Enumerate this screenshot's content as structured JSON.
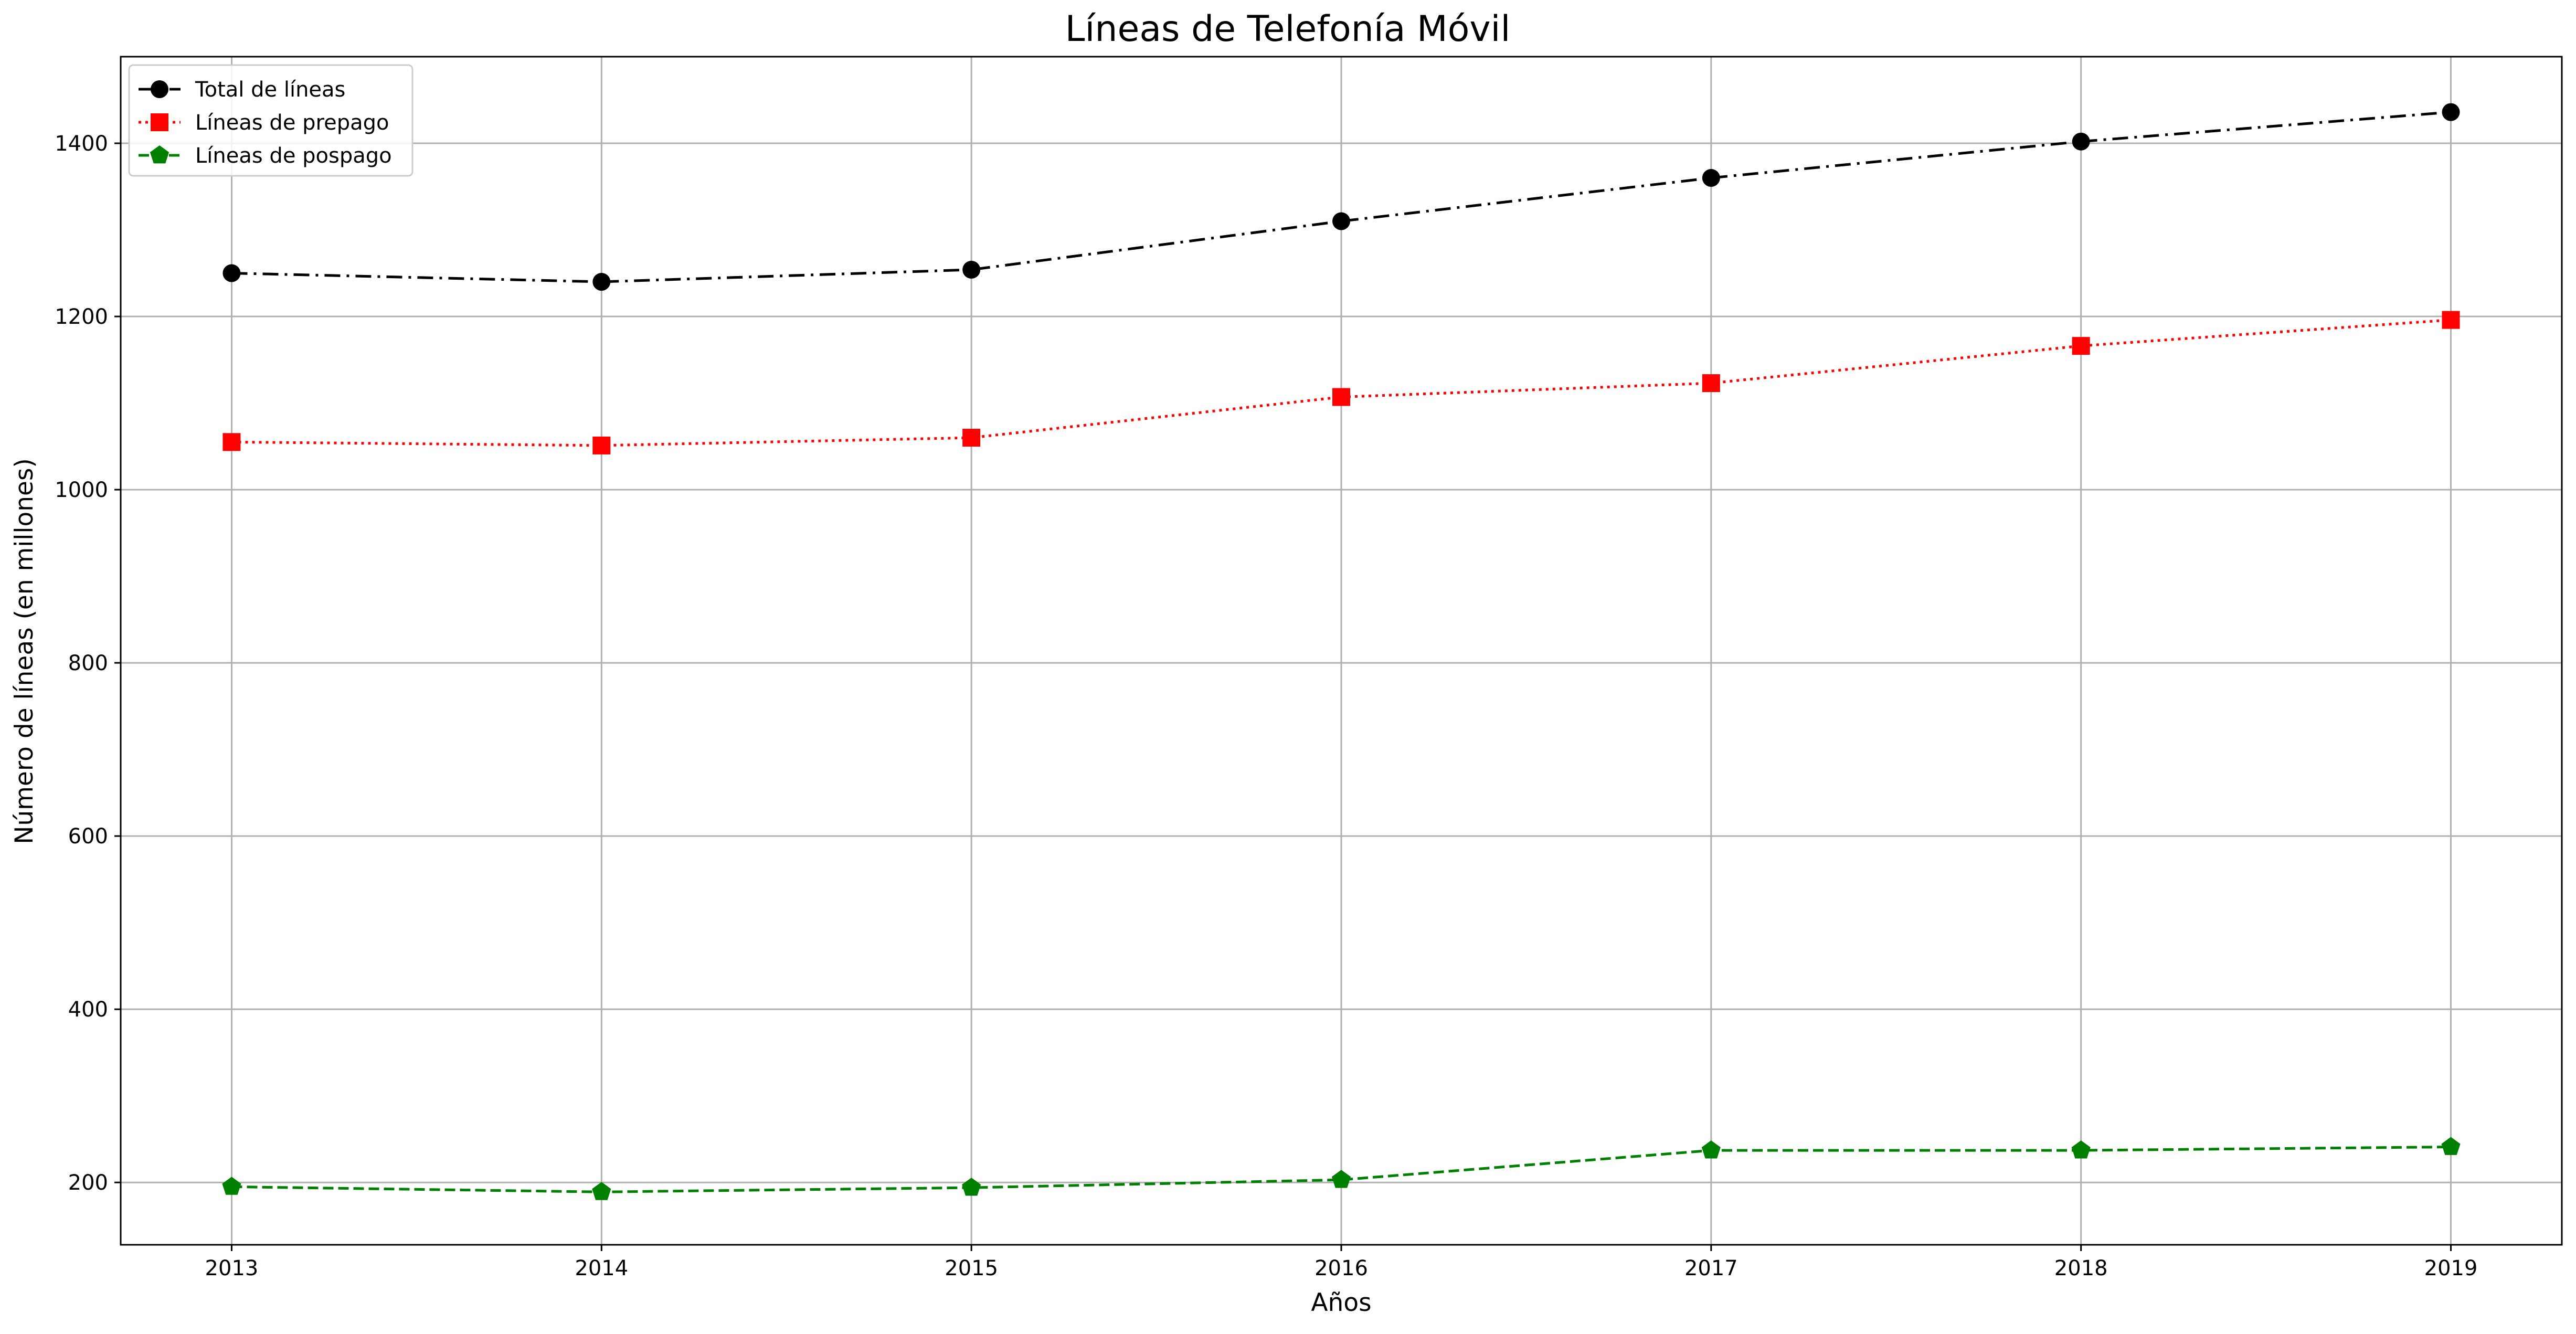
{
  "chart_data": {
    "type": "line",
    "title": "Líneas de Telefonía Móvil",
    "xlabel": "Años",
    "ylabel": "Número de líneas (en millones)",
    "x": [
      2013,
      2014,
      2015,
      2016,
      2017,
      2018,
      2019
    ],
    "xlim": [
      2012.7,
      2019.3
    ],
    "ylim": [
      128,
      1500
    ],
    "yticks": [
      200,
      400,
      600,
      800,
      1000,
      1200,
      1400
    ],
    "grid": true,
    "legend_position": "top-left",
    "series": [
      {
        "name": "Total de líneas",
        "values": [
          1250,
          1240,
          1254,
          1310,
          1360,
          1402,
          1436
        ],
        "color": "#000000",
        "linestyle": "dashdot",
        "marker": "circle"
      },
      {
        "name": "Líneas de prepago",
        "values": [
          1055,
          1051,
          1060,
          1107,
          1123,
          1166,
          1196
        ],
        "color": "#ff0000",
        "linestyle": "dotted",
        "marker": "square"
      },
      {
        "name": "Líneas de pospago",
        "values": [
          195,
          189,
          194,
          203,
          237,
          237,
          241
        ],
        "color": "#008000",
        "linestyle": "dashed",
        "marker": "pentagon"
      }
    ]
  }
}
